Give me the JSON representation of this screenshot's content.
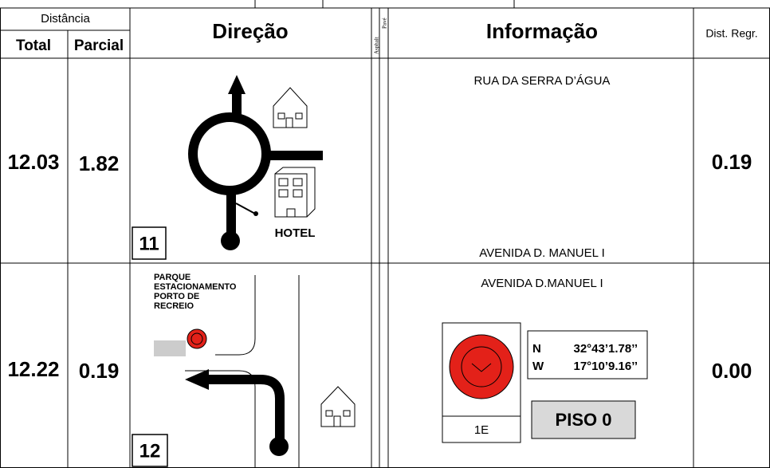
{
  "header": {
    "distance": "Distância",
    "total": "Total",
    "partial": "Parcial",
    "direction": "Direção",
    "asphalt": "Asphalt",
    "pave": "Pavé",
    "information": "Informação",
    "dist_regr": "Dist. Regr."
  },
  "rows": [
    {
      "total": "12.03",
      "partial": "1.82",
      "number": "11",
      "label": "HOTEL",
      "info_top": "RUA DA SERRA D’ÁGUA",
      "info_bottom": "AVENIDA D. MANUEL I",
      "dist_regr": "0.19"
    },
    {
      "total": "12.22",
      "partial": "0.19",
      "number": "12",
      "label_lines": [
        "PARQUE",
        "ESTACIONAMENTO",
        "PORTO DE",
        "RECREIO"
      ],
      "info_top": "AVENIDA D.MANUEL I",
      "gps_n_label": "N",
      "gps_n": "32°43’1.78’’",
      "gps_w_label": "W",
      "gps_w": "17°10’9.16’’",
      "waypoint": "1E",
      "floor": "PISO 0",
      "dist_regr": "0.00"
    }
  ]
}
